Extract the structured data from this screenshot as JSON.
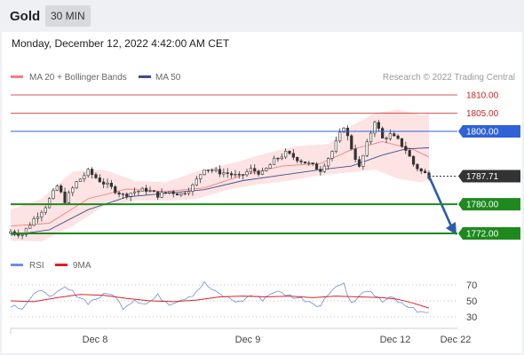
{
  "header": {
    "instrument": "Gold",
    "timeframe": "30 MIN",
    "datetime": "Monday, December 12, 2022 4:42:00 AM CET"
  },
  "legend": {
    "bollinger": "MA 20 + Bollinger Bands",
    "ma50": "MA 50",
    "credit": "Research © 2022 Trading Central",
    "rsi": "RSI",
    "rsi_ma": "9MA"
  },
  "colors": {
    "resistance": "#cc2222",
    "pivot": "#2f62d6",
    "support": "#1e8a1e",
    "current": "#333333",
    "bollinger_fill": "#fde3e3",
    "ma20": "#f08080",
    "ma50": "#3a4f8a",
    "rsi_line": "#6b8ee0",
    "rsi_ma": "#dd2222",
    "arrow": "#2a5caa"
  },
  "chart_data": [
    {
      "type": "candlestick",
      "ylim": [
        1768,
        1813
      ],
      "x_ticks": [
        "Dec 8",
        "Dec 9",
        "Dec 12",
        "Dec 22"
      ],
      "levels": [
        {
          "value": 1810.0,
          "label": "1810.00",
          "kind": "resistance"
        },
        {
          "value": 1805.0,
          "label": "1805.00",
          "kind": "resistance"
        },
        {
          "value": 1800.0,
          "label": "1800.00",
          "kind": "pivot"
        },
        {
          "value": 1787.71,
          "label": "1787.71",
          "kind": "current"
        },
        {
          "value": 1780.0,
          "label": "1780.00",
          "kind": "support"
        },
        {
          "value": 1772.0,
          "label": "1772.00",
          "kind": "support"
        }
      ],
      "close_path": [
        [
          0,
          1772.5
        ],
        [
          3,
          1771.8
        ],
        [
          6,
          1776.0
        ],
        [
          9,
          1779.5
        ],
        [
          12,
          1785.0
        ],
        [
          14,
          1781.0
        ],
        [
          17,
          1786.0
        ],
        [
          20,
          1789.0
        ],
        [
          23,
          1786.5
        ],
        [
          26,
          1784.5
        ],
        [
          29,
          1782.5
        ],
        [
          32,
          1783.5
        ],
        [
          35,
          1784.0
        ],
        [
          38,
          1782.5
        ],
        [
          41,
          1783.5
        ],
        [
          44,
          1782.8
        ],
        [
          47,
          1785.0
        ],
        [
          50,
          1790.0
        ],
        [
          53,
          1789.0
        ],
        [
          56,
          1788.5
        ],
        [
          59,
          1787.5
        ],
        [
          62,
          1789.5
        ],
        [
          65,
          1788.5
        ],
        [
          68,
          1792.0
        ],
        [
          71,
          1794.0
        ],
        [
          74,
          1792.5
        ],
        [
          77,
          1791.0
        ],
        [
          80,
          1789.5
        ],
        [
          83,
          1794.5
        ],
        [
          86,
          1801.5
        ],
        [
          88,
          1795.5
        ],
        [
          90,
          1790.0
        ],
        [
          92,
          1796.5
        ],
        [
          94,
          1803.0
        ],
        [
          96,
          1798.0
        ],
        [
          98,
          1799.0
        ],
        [
          100,
          1797.5
        ],
        [
          102,
          1795.0
        ],
        [
          104,
          1791.0
        ],
        [
          106,
          1789.0
        ],
        [
          108,
          1787.8
        ]
      ],
      "bb_mid_path": [
        [
          0,
          1774.0
        ],
        [
          10,
          1774.8
        ],
        [
          20,
          1781.5
        ],
        [
          30,
          1784.2
        ],
        [
          40,
          1783.5
        ],
        [
          50,
          1784.5
        ],
        [
          60,
          1788.0
        ],
        [
          70,
          1790.5
        ],
        [
          80,
          1791.2
        ],
        [
          88,
          1795.0
        ],
        [
          96,
          1797.2
        ],
        [
          104,
          1795.0
        ],
        [
          108,
          1793.0
        ]
      ],
      "bb_upper_path": [
        [
          0,
          1778.5
        ],
        [
          8,
          1781.5
        ],
        [
          16,
          1789.0
        ],
        [
          24,
          1789.5
        ],
        [
          32,
          1786.5
        ],
        [
          40,
          1786.0
        ],
        [
          48,
          1789.0
        ],
        [
          58,
          1791.5
        ],
        [
          66,
          1794.0
        ],
        [
          74,
          1796.0
        ],
        [
          82,
          1796.5
        ],
        [
          88,
          1801.5
        ],
        [
          94,
          1805.0
        ],
        [
          100,
          1806.0
        ],
        [
          106,
          1804.5
        ],
        [
          108,
          1805.0
        ]
      ],
      "bb_lower_path": [
        [
          0,
          1770.0
        ],
        [
          8,
          1769.8
        ],
        [
          16,
          1774.0
        ],
        [
          24,
          1779.5
        ],
        [
          32,
          1781.0
        ],
        [
          40,
          1781.0
        ],
        [
          48,
          1781.5
        ],
        [
          56,
          1784.0
        ],
        [
          64,
          1785.5
        ],
        [
          72,
          1786.5
        ],
        [
          80,
          1788.0
        ],
        [
          88,
          1788.8
        ],
        [
          94,
          1789.5
        ],
        [
          100,
          1787.0
        ],
        [
          106,
          1786.0
        ],
        [
          108,
          1787.0
        ]
      ],
      "ma50_path": [
        [
          0,
          1771.5
        ],
        [
          10,
          1773.0
        ],
        [
          20,
          1778.5
        ],
        [
          30,
          1782.0
        ],
        [
          40,
          1783.0
        ],
        [
          50,
          1784.0
        ],
        [
          60,
          1786.5
        ],
        [
          70,
          1788.0
        ],
        [
          80,
          1789.5
        ],
        [
          88,
          1790.5
        ],
        [
          96,
          1793.5
        ],
        [
          102,
          1795.2
        ],
        [
          108,
          1795.5
        ]
      ]
    },
    {
      "type": "line",
      "ylim": [
        24,
        80
      ],
      "y_ticks": [
        70,
        50,
        30
      ],
      "series": [
        {
          "name": "RSI",
          "points": [
            [
              0,
              45
            ],
            [
              3,
              42
            ],
            [
              6,
              58
            ],
            [
              9,
              62
            ],
            [
              11,
              55
            ],
            [
              14,
              66
            ],
            [
              17,
              58
            ],
            [
              20,
              48
            ],
            [
              23,
              55
            ],
            [
              26,
              60
            ],
            [
              29,
              42
            ],
            [
              32,
              52
            ],
            [
              35,
              46
            ],
            [
              38,
              56
            ],
            [
              41,
              47
            ],
            [
              44,
              52
            ],
            [
              47,
              58
            ],
            [
              50,
              72
            ],
            [
              53,
              60
            ],
            [
              56,
              54
            ],
            [
              59,
              48
            ],
            [
              62,
              57
            ],
            [
              65,
              52
            ],
            [
              68,
              62
            ],
            [
              71,
              58
            ],
            [
              74,
              54
            ],
            [
              77,
              50
            ],
            [
              80,
              44
            ],
            [
              83,
              66
            ],
            [
              86,
              72
            ],
            [
              88,
              46
            ],
            [
              90,
              55
            ],
            [
              92,
              64
            ],
            [
              94,
              54
            ],
            [
              96,
              50
            ],
            [
              98,
              56
            ],
            [
              100,
              47
            ],
            [
              102,
              44
            ],
            [
              104,
              40
            ],
            [
              106,
              35
            ],
            [
              108,
              35
            ]
          ]
        },
        {
          "name": "9MA",
          "points": [
            [
              0,
              50
            ],
            [
              6,
              49
            ],
            [
              12,
              54
            ],
            [
              18,
              58
            ],
            [
              24,
              57
            ],
            [
              30,
              53
            ],
            [
              36,
              50
            ],
            [
              42,
              49
            ],
            [
              48,
              51
            ],
            [
              54,
              55
            ],
            [
              60,
              56
            ],
            [
              66,
              55
            ],
            [
              72,
              56
            ],
            [
              78,
              54
            ],
            [
              84,
              56
            ],
            [
              90,
              55
            ],
            [
              96,
              54
            ],
            [
              100,
              52
            ],
            [
              104,
              47
            ],
            [
              108,
              41
            ]
          ]
        }
      ]
    }
  ]
}
